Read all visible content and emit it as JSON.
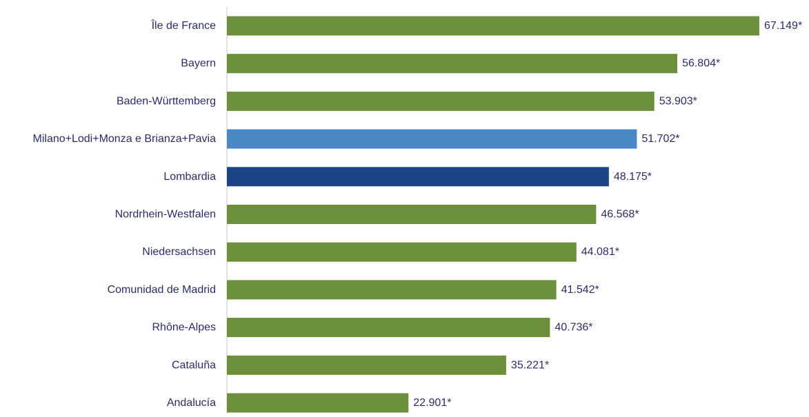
{
  "chart_data": {
    "type": "bar",
    "orientation": "horizontal",
    "categories": [
      "Île de France",
      "Bayern",
      "Baden-Württemberg",
      "Milano+Lodi+Monza e Brianza+Pavia",
      "Lombardia",
      "Nordrhein-Westfalen",
      "Niedersachsen",
      "Comunidad de Madrid",
      "Rhône-Alpes",
      "Cataluña",
      "Andalucía"
    ],
    "values": [
      67.149,
      56.804,
      53.903,
      51.702,
      48.175,
      46.568,
      44.081,
      41.542,
      40.736,
      35.221,
      22.901
    ],
    "value_labels": [
      "67.149*",
      "56.804*",
      "53.903*",
      "51.702*",
      "48.175*",
      "46.568*",
      "44.081*",
      "41.542*",
      "40.736*",
      "35.221*",
      "22.901*"
    ],
    "bar_colors": [
      "#6b8f3a",
      "#6b8f3a",
      "#6b8f3a",
      "#4a87c5",
      "#1b4587",
      "#6b8f3a",
      "#6b8f3a",
      "#6b8f3a",
      "#6b8f3a",
      "#6b8f3a",
      "#6b8f3a"
    ],
    "xlim": [
      0,
      70
    ],
    "grid": false,
    "legend": "none"
  }
}
